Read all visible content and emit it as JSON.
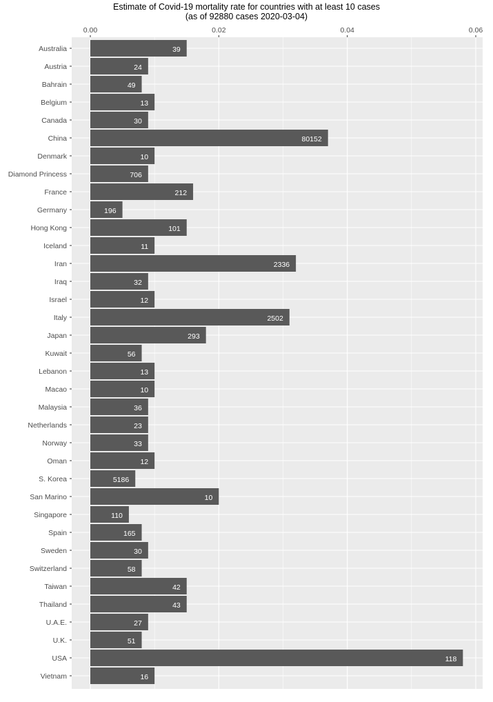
{
  "chart_data": {
    "type": "bar",
    "orientation": "horizontal",
    "title": "Estimate of Covid-19 mortality rate for countries with at least 10 cases",
    "subtitle": "(as of 92880 cases 2020-03-04)",
    "xlabel": "",
    "ylabel": "",
    "xlim": [
      0,
      0.061
    ],
    "x_ticks": [
      0.0,
      0.02,
      0.04,
      0.06
    ],
    "x_tick_labels": [
      "0.00",
      "0.02",
      "0.04",
      "0.06"
    ],
    "x_axis_position": "top",
    "grid": true,
    "bar_color": "#595959",
    "panel_color": "#ebebeb",
    "categories": [
      "Australia",
      "Austria",
      "Bahrain",
      "Belgium",
      "Canada",
      "China",
      "Denmark",
      "Diamond Princess",
      "France",
      "Germany",
      "Hong Kong",
      "Iceland",
      "Iran",
      "Iraq",
      "Israel",
      "Italy",
      "Japan",
      "Kuwait",
      "Lebanon",
      "Macao",
      "Malaysia",
      "Netherlands",
      "Norway",
      "Oman",
      "S. Korea",
      "San Marino",
      "Singapore",
      "Spain",
      "Sweden",
      "Switzerland",
      "Taiwan",
      "Thailand",
      "U.A.E.",
      "U.K.",
      "USA",
      "Vietnam"
    ],
    "values": [
      0.015,
      0.009,
      0.008,
      0.01,
      0.009,
      0.037,
      0.01,
      0.009,
      0.016,
      0.005,
      0.015,
      0.01,
      0.032,
      0.009,
      0.01,
      0.031,
      0.018,
      0.008,
      0.01,
      0.01,
      0.009,
      0.009,
      0.009,
      0.01,
      0.007,
      0.02,
      0.006,
      0.008,
      0.009,
      0.008,
      0.015,
      0.015,
      0.009,
      0.008,
      0.058,
      0.01
    ],
    "bar_labels": [
      "39",
      "24",
      "49",
      "13",
      "30",
      "80152",
      "10",
      "706",
      "212",
      "196",
      "101",
      "11",
      "2336",
      "32",
      "12",
      "2502",
      "293",
      "56",
      "13",
      "10",
      "36",
      "23",
      "33",
      "12",
      "5186",
      "10",
      "110",
      "165",
      "30",
      "58",
      "42",
      "43",
      "27",
      "51",
      "118",
      "16"
    ]
  }
}
